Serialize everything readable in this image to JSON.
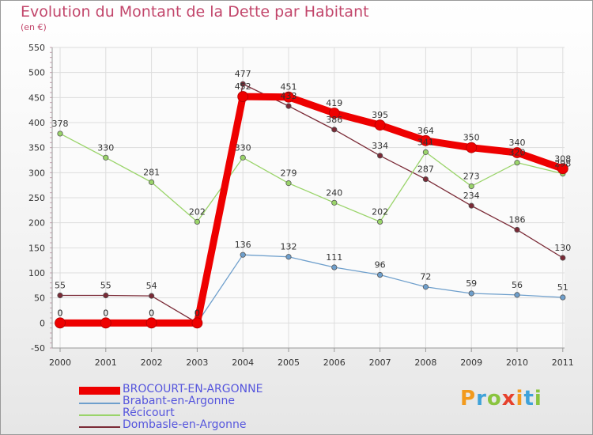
{
  "chart_data": {
    "type": "line",
    "title": "Evolution du Montant de la Dette par Habitant",
    "unit": "(en €)",
    "categories": [
      "2000",
      "2001",
      "2002",
      "2003",
      "2004",
      "2005",
      "2006",
      "2007",
      "2008",
      "2009",
      "2010",
      "2011"
    ],
    "ylim": [
      -50,
      550
    ],
    "yticks": [
      -50,
      0,
      50,
      100,
      150,
      200,
      250,
      300,
      350,
      400,
      450,
      500,
      550
    ],
    "series": [
      {
        "name": "BROCOURT-EN-ARGONNE",
        "color": "#ee0000",
        "values": [
          0,
          0,
          0,
          0,
          452,
          451,
          419,
          395,
          364,
          350,
          340,
          308
        ]
      },
      {
        "name": "Brabant-en-Argonne",
        "color": "#6e9fcc",
        "values": [
          0,
          0,
          0,
          0,
          136,
          132,
          111,
          96,
          72,
          59,
          56,
          51
        ]
      },
      {
        "name": "Récicourt",
        "color": "#9ad46a",
        "values": [
          378,
          330,
          281,
          202,
          330,
          279,
          240,
          202,
          341,
          273,
          320,
          298
        ]
      },
      {
        "name": "Dombasle-en-Argonne",
        "color": "#7a2a36",
        "values": [
          55,
          55,
          54,
          0,
          477,
          433,
          386,
          334,
          287,
          234,
          186,
          130
        ]
      }
    ]
  },
  "brand": "Proxiti",
  "brand_colors": [
    "#f29a1d",
    "#3fa2d9",
    "#8ac43f",
    "#e6412c"
  ]
}
